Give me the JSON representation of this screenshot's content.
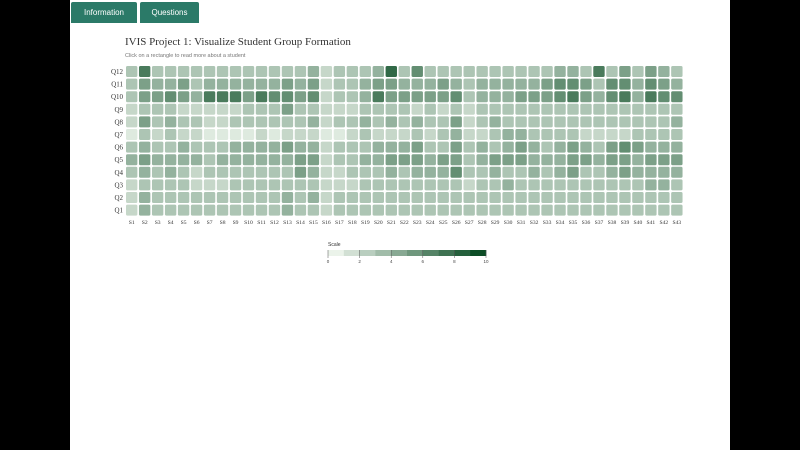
{
  "tabs": [
    {
      "label": "Information"
    },
    {
      "label": "Questions"
    }
  ],
  "header": {
    "title": "IVIS Project 1: Visualize Student Group Formation",
    "subtitle": "Click on a rectangle to read more about a student"
  },
  "chart_data": {
    "type": "heatmap",
    "x_categories": [
      "S1",
      "S2",
      "S3",
      "S4",
      "S5",
      "S6",
      "S7",
      "S8",
      "S9",
      "S10",
      "S11",
      "S12",
      "S13",
      "S14",
      "S15",
      "S16",
      "S17",
      "S18",
      "S19",
      "S20",
      "S21",
      "S22",
      "S23",
      "S24",
      "S25",
      "S26",
      "S27",
      "S28",
      "S29",
      "S30",
      "S31",
      "S32",
      "S33",
      "S34",
      "S35",
      "S36",
      "S37",
      "S38",
      "S39",
      "S40",
      "S41",
      "S42",
      "S43"
    ],
    "y_categories": [
      "Q12",
      "Q11",
      "Q10",
      "Q9",
      "Q8",
      "Q7",
      "Q6",
      "Q5",
      "Q4",
      "Q3",
      "Q2",
      "Q1"
    ],
    "values": [
      [
        3,
        7,
        3,
        3,
        3,
        3,
        3,
        3,
        3,
        3,
        3,
        3,
        3,
        3,
        4,
        2,
        3,
        3,
        3,
        4,
        8,
        3,
        6,
        3,
        3,
        3,
        3,
        3,
        3,
        3,
        3,
        3,
        3,
        4,
        4,
        3,
        7,
        3,
        5,
        3,
        5,
        4,
        3
      ],
      [
        3,
        5,
        4,
        4,
        5,
        3,
        4,
        4,
        4,
        4,
        4,
        4,
        5,
        4,
        5,
        2,
        3,
        3,
        4,
        5,
        5,
        4,
        4,
        4,
        5,
        4,
        3,
        4,
        4,
        4,
        4,
        4,
        5,
        6,
        6,
        5,
        3,
        6,
        6,
        4,
        6,
        5,
        4
      ],
      [
        3,
        5,
        5,
        6,
        5,
        4,
        7,
        7,
        7,
        5,
        7,
        6,
        6,
        5,
        6,
        2,
        3,
        3,
        4,
        7,
        5,
        5,
        5,
        5,
        5,
        6,
        3,
        4,
        4,
        4,
        5,
        5,
        5,
        6,
        7,
        5,
        4,
        6,
        7,
        4,
        7,
        6,
        6
      ],
      [
        2,
        3,
        3,
        3,
        2,
        2,
        2,
        2,
        2,
        3,
        3,
        3,
        5,
        3,
        3,
        2,
        2,
        2,
        3,
        3,
        3,
        3,
        2,
        3,
        2,
        3,
        2,
        3,
        3,
        3,
        3,
        3,
        3,
        3,
        3,
        3,
        3,
        3,
        3,
        3,
        3,
        3,
        3
      ],
      [
        2,
        5,
        3,
        4,
        3,
        3,
        2,
        2,
        3,
        3,
        3,
        3,
        3,
        3,
        4,
        2,
        3,
        3,
        4,
        3,
        4,
        3,
        4,
        3,
        3,
        5,
        2,
        3,
        4,
        3,
        3,
        3,
        3,
        3,
        3,
        3,
        3,
        3,
        3,
        3,
        3,
        3,
        4
      ],
      [
        1,
        3,
        2,
        3,
        2,
        2,
        1,
        1,
        1,
        1,
        2,
        1,
        2,
        2,
        2,
        1,
        1,
        2,
        3,
        2,
        2,
        2,
        3,
        2,
        3,
        4,
        2,
        2,
        3,
        4,
        4,
        3,
        3,
        3,
        3,
        2,
        2,
        2,
        2,
        3,
        3,
        3,
        3
      ],
      [
        3,
        4,
        3,
        3,
        4,
        3,
        3,
        3,
        4,
        4,
        4,
        4,
        5,
        4,
        4,
        2,
        3,
        3,
        3,
        4,
        4,
        4,
        5,
        3,
        3,
        5,
        3,
        4,
        3,
        4,
        5,
        4,
        3,
        4,
        5,
        4,
        3,
        5,
        6,
        5,
        4,
        4,
        4
      ],
      [
        4,
        5,
        4,
        4,
        4,
        4,
        3,
        4,
        4,
        4,
        4,
        4,
        4,
        5,
        5,
        2,
        3,
        3,
        4,
        4,
        5,
        5,
        5,
        4,
        5,
        5,
        3,
        4,
        5,
        5,
        5,
        4,
        4,
        4,
        5,
        5,
        4,
        5,
        5,
        4,
        5,
        5,
        5
      ],
      [
        3,
        4,
        3,
        4,
        3,
        2,
        3,
        3,
        3,
        3,
        3,
        3,
        3,
        5,
        4,
        2,
        2,
        3,
        3,
        3,
        4,
        3,
        4,
        4,
        4,
        6,
        3,
        3,
        4,
        3,
        3,
        4,
        3,
        4,
        5,
        3,
        3,
        4,
        5,
        4,
        4,
        4,
        4
      ],
      [
        2,
        3,
        3,
        3,
        3,
        2,
        2,
        2,
        3,
        3,
        3,
        3,
        3,
        3,
        3,
        2,
        2,
        2,
        3,
        3,
        3,
        3,
        3,
        3,
        3,
        3,
        2,
        3,
        3,
        4,
        3,
        3,
        3,
        3,
        3,
        3,
        3,
        3,
        3,
        3,
        4,
        4,
        3
      ],
      [
        2,
        4,
        3,
        3,
        3,
        3,
        3,
        3,
        3,
        3,
        3,
        3,
        4,
        3,
        4,
        2,
        3,
        3,
        3,
        3,
        3,
        3,
        3,
        3,
        3,
        3,
        3,
        3,
        3,
        3,
        3,
        3,
        3,
        3,
        3,
        3,
        3,
        3,
        3,
        3,
        3,
        3,
        3
      ],
      [
        2,
        4,
        3,
        3,
        3,
        3,
        3,
        3,
        3,
        3,
        3,
        3,
        4,
        3,
        3,
        2,
        3,
        3,
        3,
        3,
        3,
        3,
        3,
        3,
        3,
        3,
        3,
        3,
        3,
        3,
        3,
        3,
        3,
        3,
        3,
        3,
        3,
        3,
        3,
        3,
        3,
        3,
        3
      ]
    ],
    "color_range": [
      "#f7fcf5",
      "#00441b"
    ],
    "legend": {
      "title": "Scale",
      "ticks": [
        "0",
        "2",
        "4",
        "6",
        "8",
        "10"
      ],
      "min": 0,
      "max": 10
    }
  }
}
